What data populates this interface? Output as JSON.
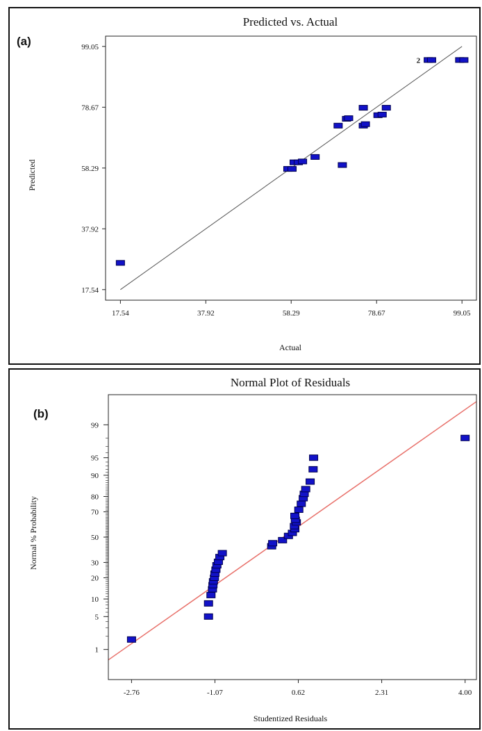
{
  "colors": {
    "marker": "#1212c8",
    "marker_edge": "#000050",
    "fit_line_a": "#555555",
    "fit_line_b": "#e8706a"
  },
  "chart_data": [
    {
      "type": "scatter",
      "panel_label": "(a)",
      "title": "Predicted vs. Actual",
      "xlabel": "Actual",
      "ylabel": "Predicted",
      "xlim": [
        14.0,
        102.5
      ],
      "ylim": [
        14.0,
        102.5
      ],
      "xticks": [
        "17.54",
        "37.92",
        "58.29",
        "78.67",
        "99.05"
      ],
      "yticks": [
        "17.54",
        "37.92",
        "58.29",
        "78.67",
        "99.05"
      ],
      "annotation": "2",
      "fit_line": [
        [
          17.54,
          17.54
        ],
        [
          99.05,
          99.05
        ]
      ],
      "points": [
        [
          17.54,
          26.5
        ],
        [
          57.5,
          58.0
        ],
        [
          58.5,
          58.0
        ],
        [
          59.0,
          60.2
        ],
        [
          60.0,
          60.2
        ],
        [
          61.0,
          60.5
        ],
        [
          64.0,
          62.0
        ],
        [
          69.5,
          72.5
        ],
        [
          70.5,
          59.3
        ],
        [
          71.5,
          74.8
        ],
        [
          72.0,
          75.0
        ],
        [
          75.5,
          78.5
        ],
        [
          75.5,
          72.5
        ],
        [
          76.0,
          73.0
        ],
        [
          79.0,
          76.0
        ],
        [
          80.0,
          76.2
        ],
        [
          81.0,
          78.5
        ],
        [
          91.0,
          94.5
        ],
        [
          91.8,
          94.5
        ],
        [
          98.5,
          94.5
        ],
        [
          99.5,
          94.5
        ]
      ]
    },
    {
      "type": "scatter",
      "panel_label": "(b)",
      "title": "Normal Plot of Residuals",
      "xlabel": "Studentized Residuals",
      "ylabel": "Normal % Probability",
      "xlim": [
        -3.23,
        4.23
      ],
      "xticks": [
        "-2.76",
        "-1.07",
        "0.62",
        "2.31",
        "4.00"
      ],
      "yticks": [
        "99",
        "95",
        "90",
        "80",
        "70",
        "50",
        "30",
        "20",
        "10",
        "5",
        "1"
      ],
      "fit_line": [
        [
          -3.23,
          0.55
        ],
        [
          4.23,
          99.75
        ]
      ],
      "points": [
        [
          -2.76,
          1.7
        ],
        [
          -1.2,
          5
        ],
        [
          -1.2,
          8.5
        ],
        [
          -1.15,
          11.5
        ],
        [
          -1.12,
          14
        ],
        [
          -1.11,
          16
        ],
        [
          -1.1,
          18
        ],
        [
          -1.08,
          20
        ],
        [
          -1.07,
          22.5
        ],
        [
          -1.05,
          25
        ],
        [
          -1.03,
          28
        ],
        [
          -1.0,
          30.5
        ],
        [
          -0.97,
          34
        ],
        [
          -0.92,
          37
        ],
        [
          0.08,
          42.5
        ],
        [
          0.1,
          45
        ],
        [
          0.3,
          47.5
        ],
        [
          0.42,
          51
        ],
        [
          0.5,
          53.5
        ],
        [
          0.55,
          56.5
        ],
        [
          0.54,
          59
        ],
        [
          0.58,
          62
        ],
        [
          0.56,
          64
        ],
        [
          0.55,
          67
        ],
        [
          0.63,
          71.5
        ],
        [
          0.68,
          75.5
        ],
        [
          0.72,
          79
        ],
        [
          0.74,
          81.5
        ],
        [
          0.77,
          84
        ],
        [
          0.86,
          87.5
        ],
        [
          0.92,
          92
        ],
        [
          0.93,
          95
        ],
        [
          4.0,
          98
        ]
      ]
    }
  ]
}
